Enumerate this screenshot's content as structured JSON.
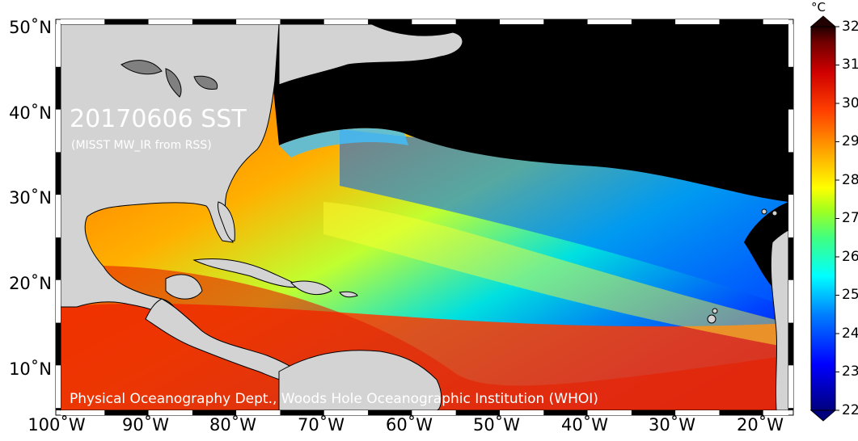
{
  "map": {
    "title": "20170606 SST",
    "subtitle": "(MISST MW_IR from RSS)",
    "credit": "Physical Oceanography Dept., Woods Hole Oceanographic Institution (WHOI)",
    "lat_labels": [
      "50˚N",
      "40˚N",
      "30˚N",
      "20˚N",
      "10˚N"
    ],
    "lon_labels": [
      "100˚W",
      "90˚W",
      "80˚W",
      "70˚W",
      "60˚W",
      "50˚W",
      "40˚W",
      "30˚W",
      "20˚W"
    ],
    "land_color": "#d3d3d3",
    "ice_color": "#000000"
  },
  "colorbar": {
    "units": "°C",
    "labels": [
      "32",
      "31",
      "30",
      "29",
      "28",
      "27",
      "26",
      "25",
      "24",
      "23",
      "22"
    ],
    "min": 22,
    "max": 32
  }
}
